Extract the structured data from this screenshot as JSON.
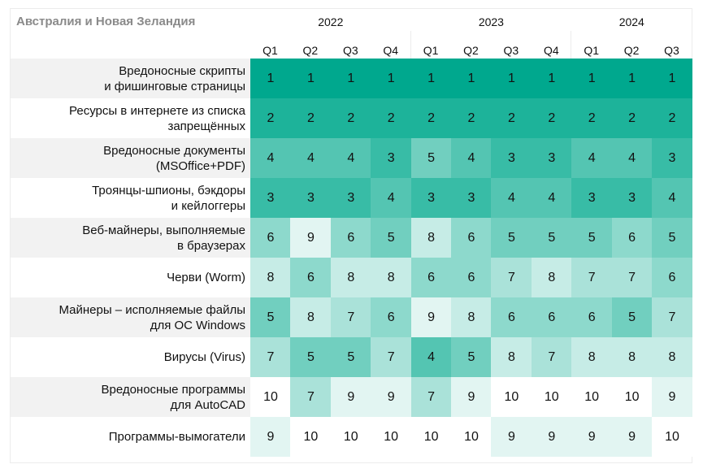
{
  "chart_data": {
    "type": "heatmap",
    "title": "Австралия и Новая Зеландия",
    "years": [
      {
        "label": "2022",
        "quarters": 4
      },
      {
        "label": "2023",
        "quarters": 4
      },
      {
        "label": "2024",
        "quarters": 3
      }
    ],
    "columns": [
      "Q1",
      "Q2",
      "Q3",
      "Q4",
      "Q1",
      "Q2",
      "Q3",
      "Q4",
      "Q1",
      "Q2",
      "Q3"
    ],
    "rows": [
      {
        "label": "Вредоносные скрипты\nи фишинговые страницы",
        "values": [
          1,
          1,
          1,
          1,
          1,
          1,
          1,
          1,
          1,
          1,
          1
        ]
      },
      {
        "label": "Ресурсы в интернете из списка\nзапрещённых",
        "values": [
          2,
          2,
          2,
          2,
          2,
          2,
          2,
          2,
          2,
          2,
          2
        ]
      },
      {
        "label": "Вредоносные документы\n(MSOffice+PDF)",
        "values": [
          4,
          4,
          4,
          3,
          5,
          4,
          3,
          3,
          4,
          4,
          3
        ]
      },
      {
        "label": "Троянцы-шпионы, бэкдоры\nи кейлоггеры",
        "values": [
          3,
          3,
          3,
          4,
          3,
          3,
          4,
          4,
          3,
          3,
          4
        ]
      },
      {
        "label": "Веб-майнеры, выполняемые\nв браузерах",
        "values": [
          6,
          9,
          6,
          5,
          8,
          6,
          5,
          5,
          5,
          6,
          5
        ]
      },
      {
        "label": "Черви (Worm)",
        "values": [
          8,
          6,
          8,
          8,
          6,
          6,
          7,
          8,
          7,
          7,
          6
        ]
      },
      {
        "label": "Майнеры – исполняемые файлы\nдля ОС Windows",
        "values": [
          5,
          8,
          7,
          6,
          9,
          8,
          6,
          6,
          6,
          5,
          7
        ]
      },
      {
        "label": "Вирусы (Virus)",
        "values": [
          7,
          5,
          5,
          7,
          4,
          5,
          8,
          7,
          8,
          8,
          8
        ]
      },
      {
        "label": "Вредоносные программы\nдля AutoCAD",
        "values": [
          10,
          7,
          9,
          9,
          7,
          9,
          10,
          10,
          10,
          10,
          9
        ]
      },
      {
        "label": "Программы-вымогатели",
        "values": [
          9,
          10,
          10,
          10,
          10,
          10,
          9,
          9,
          9,
          9,
          10
        ]
      }
    ],
    "color_scale": [
      "#00a88e",
      "#1db39a",
      "#38bca6",
      "#54c5b2",
      "#71cfbf",
      "#8dd9cc",
      "#aae2d9",
      "#c6ece6",
      "#e2f5f2",
      "#ffffff"
    ]
  }
}
